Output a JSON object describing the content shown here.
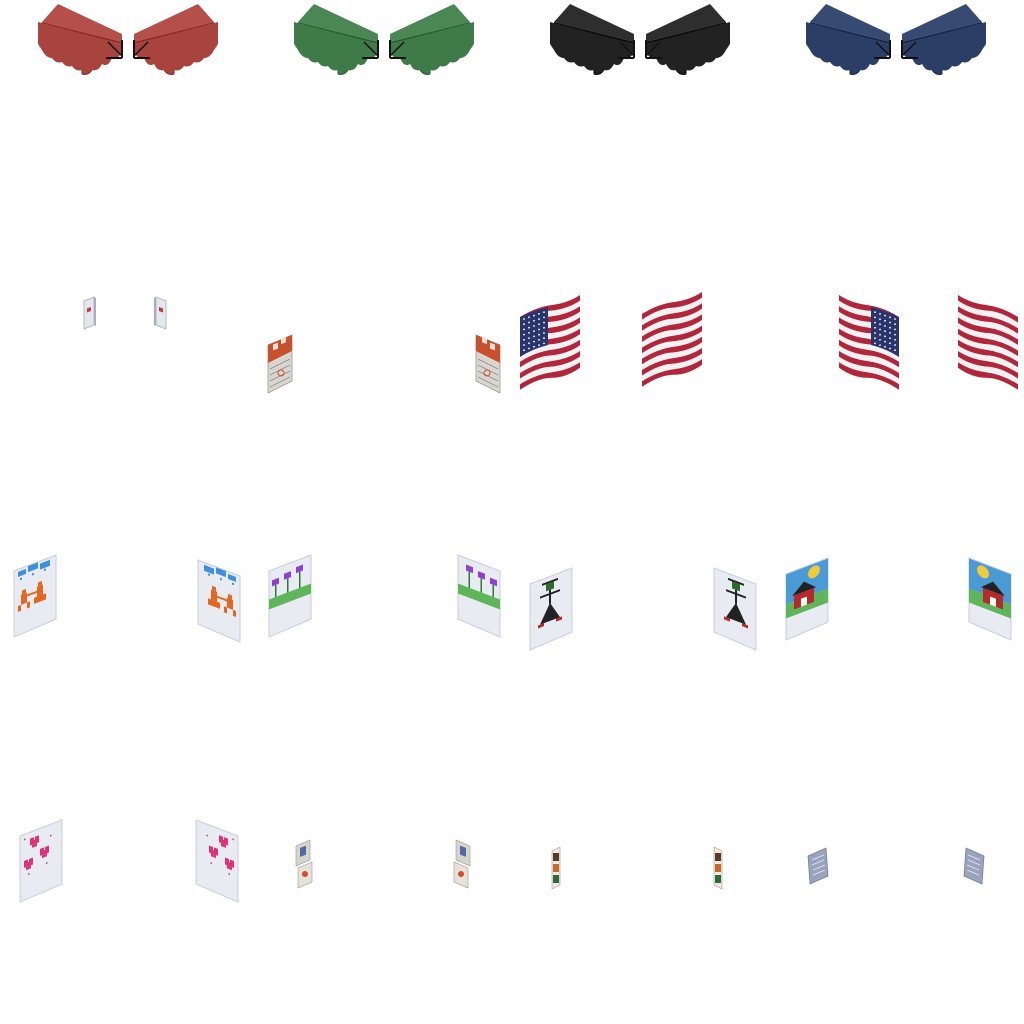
{
  "sheet": {
    "background": "#ffffff",
    "rows": [
      {
        "name": "awnings",
        "items": [
          {
            "kind": "awning",
            "facing": "left",
            "color": "#a8433e"
          },
          {
            "kind": "awning",
            "facing": "right",
            "color": "#a8433e"
          },
          {
            "kind": "awning",
            "facing": "left",
            "color": "#3f7a49"
          },
          {
            "kind": "awning",
            "facing": "right",
            "color": "#3f7a49"
          },
          {
            "kind": "awning",
            "facing": "left",
            "color": "#222222"
          },
          {
            "kind": "awning",
            "facing": "right",
            "color": "#222222"
          },
          {
            "kind": "awning",
            "facing": "left",
            "color": "#2b3f66"
          },
          {
            "kind": "awning",
            "facing": "right",
            "color": "#2b3f66"
          }
        ]
      },
      {
        "name": "small-wall-items-and-flags",
        "items": [
          {
            "kind": "wall-plaque",
            "facing": "left"
          },
          {
            "kind": "wall-plaque",
            "facing": "right"
          },
          {
            "kind": "calendar-poster",
            "facing": "left"
          },
          {
            "kind": "calendar-poster",
            "facing": "right"
          },
          {
            "kind": "us-flag",
            "facing": "left"
          },
          {
            "kind": "us-flag-back",
            "facing": "left"
          },
          {
            "kind": "us-flag",
            "facing": "right"
          },
          {
            "kind": "us-flag-back",
            "facing": "right"
          }
        ]
      },
      {
        "name": "kids-drawings",
        "items": [
          {
            "kind": "drawing-rain-people",
            "facing": "left"
          },
          {
            "kind": "drawing-rain-people",
            "facing": "right"
          },
          {
            "kind": "drawing-flowers",
            "facing": "left"
          },
          {
            "kind": "drawing-flowers",
            "facing": "right"
          },
          {
            "kind": "drawing-stick-figure",
            "facing": "left"
          },
          {
            "kind": "drawing-stick-figure",
            "facing": "right"
          },
          {
            "kind": "drawing-house",
            "facing": "left"
          },
          {
            "kind": "drawing-house",
            "facing": "right"
          }
        ]
      },
      {
        "name": "small-pictures",
        "items": [
          {
            "kind": "drawing-hearts",
            "facing": "left"
          },
          {
            "kind": "drawing-hearts",
            "facing": "right"
          },
          {
            "kind": "photo-stack",
            "facing": "left"
          },
          {
            "kind": "photo-stack",
            "facing": "right"
          },
          {
            "kind": "photo-strip",
            "facing": "left"
          },
          {
            "kind": "photo-strip",
            "facing": "right"
          },
          {
            "kind": "note-paper",
            "facing": "left"
          },
          {
            "kind": "note-paper",
            "facing": "right"
          }
        ]
      }
    ],
    "colors": {
      "flag_red": "#b3253a",
      "flag_blue": "#2a356e",
      "paper": "#e8ecf2",
      "paper_shadow": "#c9ced8",
      "rain_blue": "#3d8fe0",
      "figure_orange": "#e5661c",
      "flower_purple": "#8e3fd6",
      "grass_green": "#5fb55a",
      "heart_pink": "#e0307a",
      "sky_blue": "#4a9ad6",
      "sun_yellow": "#f0cc3c",
      "house_red": "#b42a2a"
    }
  }
}
